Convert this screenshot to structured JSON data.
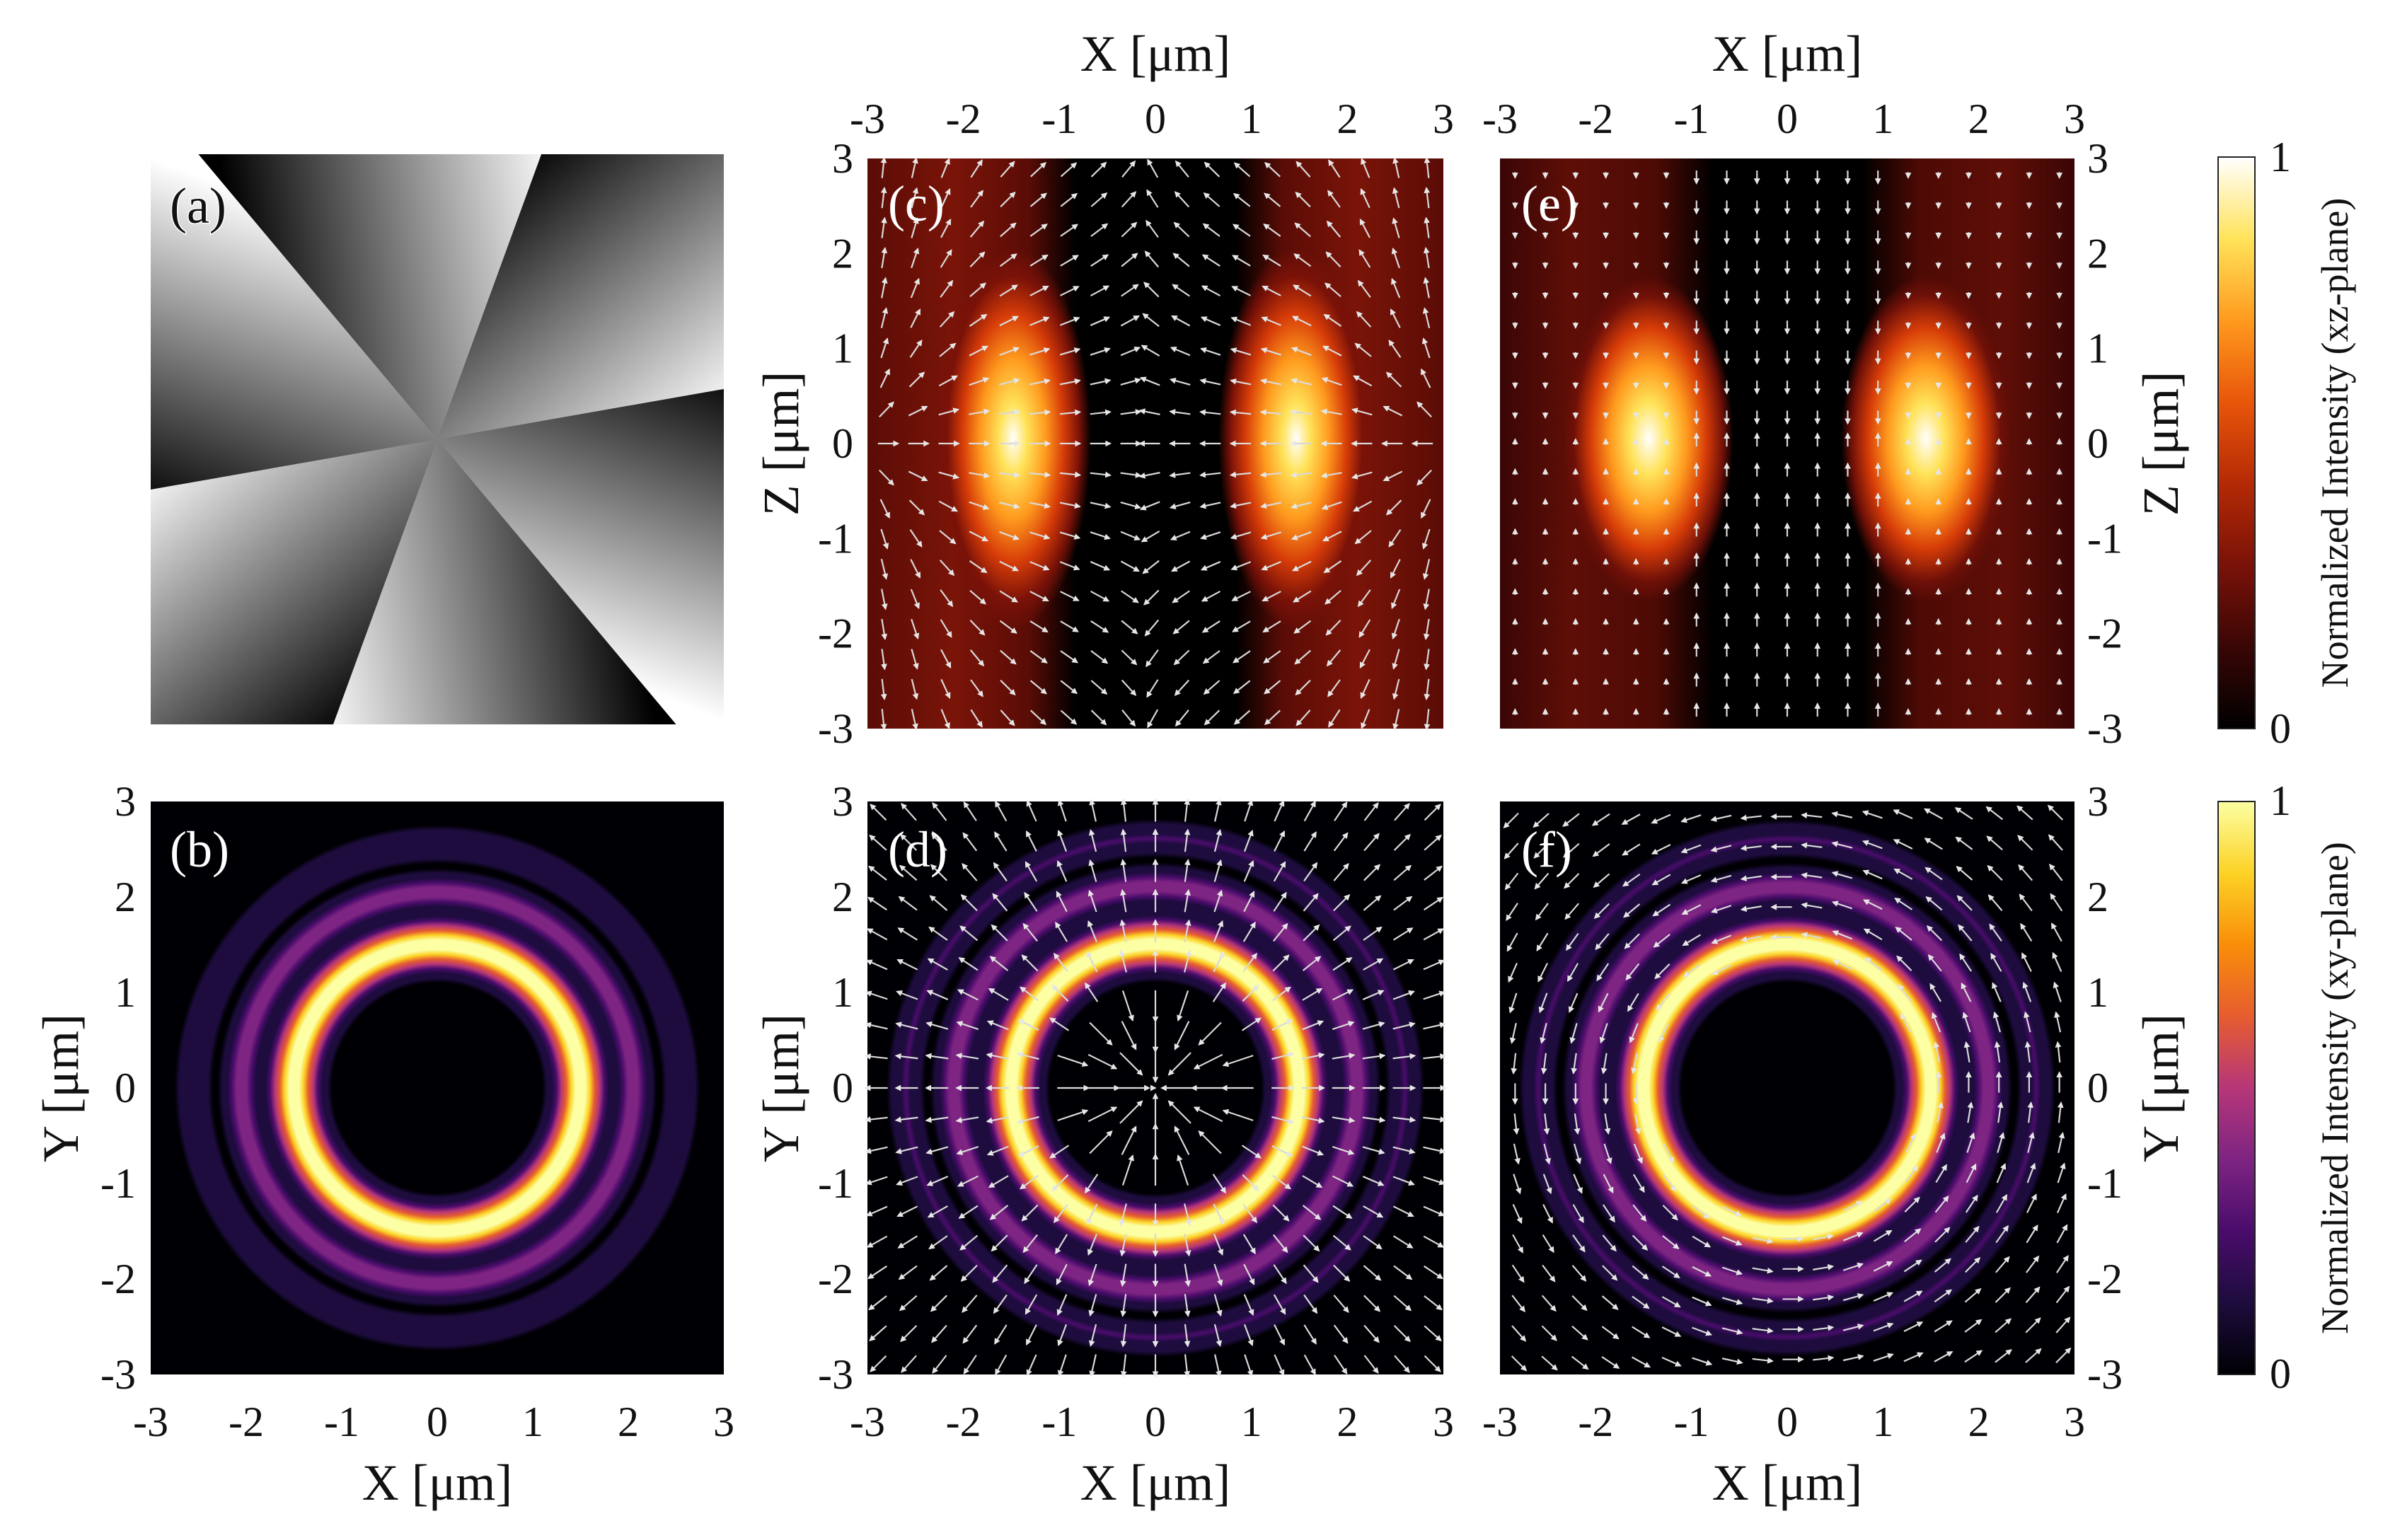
{
  "figure": {
    "axis_label_x": "X [μm]",
    "axis_label_y": "Y [μm]",
    "axis_label_z": "Z [μm]",
    "colorbar_xz_label": "Normalized Intensity (xz-plane)",
    "colorbar_xy_label": "Normalized Intensity (xy-plane)",
    "colorbar_ticks": [
      "0",
      "1"
    ]
  },
  "colors": {
    "xz_colormap": [
      "#000000",
      "#3a0606",
      "#7a1208",
      "#b42a05",
      "#e8560a",
      "#ff9a1e",
      "#ffe35a",
      "#ffffff"
    ],
    "xy_colormap": [
      "#000004",
      "#1d0c3d",
      "#4a0c6b",
      "#7e2482",
      "#b63679",
      "#e65d2f",
      "#f98e09",
      "#fcd225",
      "#fcffa4"
    ]
  },
  "chart_data": [
    {
      "panel": "(a)",
      "type": "heatmap",
      "description_value": "phase",
      "sectors": 6,
      "gradient": [
        "#000000",
        "#ffffff"
      ]
    },
    {
      "panel": "(b)",
      "type": "heatmap",
      "plane": "xy",
      "xlim": [
        -3,
        3
      ],
      "ylim": [
        -3,
        3
      ],
      "xticks": [
        "-3",
        "-2",
        "-1",
        "0",
        "1",
        "2",
        "3"
      ],
      "yticks": [
        "3",
        "2",
        "1",
        "0",
        "-1",
        "-2",
        "-3"
      ],
      "rings": [
        {
          "radius": 1.5,
          "intensity": 1.0
        },
        {
          "radius": 2.05,
          "intensity": 0.35
        },
        {
          "radius": 2.55,
          "intensity": 0.18
        }
      ]
    },
    {
      "panel": "(c)",
      "type": "heatmap",
      "plane": "xz",
      "xlim": [
        -3,
        3
      ],
      "ylim": [
        -3,
        3
      ],
      "xticks": [
        "-3",
        "-2",
        "-1",
        "0",
        "1",
        "2",
        "3"
      ],
      "yticks": [
        "3",
        "2",
        "1",
        "0",
        "-1",
        "-2",
        "-3"
      ],
      "lobes": [
        {
          "x": -1.5,
          "z": 0,
          "intensity": 1.0
        },
        {
          "x": 1.5,
          "z": 0,
          "intensity": 1.0
        }
      ],
      "vector_field": "arrows"
    },
    {
      "panel": "(d)",
      "type": "heatmap",
      "plane": "xy",
      "xlim": [
        -3,
        3
      ],
      "ylim": [
        -3,
        3
      ],
      "xticks": [
        "-3",
        "-2",
        "-1",
        "0",
        "1",
        "2",
        "3"
      ],
      "yticks": [
        "3",
        "2",
        "1",
        "0",
        "-1",
        "-2",
        "-3"
      ],
      "rings": [
        {
          "radius": 1.5,
          "intensity": 1.0
        },
        {
          "radius": 2.1,
          "intensity": 0.38
        },
        {
          "radius": 2.6,
          "intensity": 0.2
        }
      ],
      "vector_field": "arrows"
    },
    {
      "panel": "(e)",
      "type": "heatmap",
      "plane": "xz",
      "xlim": [
        -3,
        3
      ],
      "ylim": [
        -3,
        3
      ],
      "xticks": [
        "-3",
        "-2",
        "-1",
        "0",
        "1",
        "2",
        "3"
      ],
      "yticks": [
        "3",
        "2",
        "1",
        "0",
        "-1",
        "-2",
        "-3"
      ],
      "lobes": [
        {
          "x": -1.45,
          "z": 0,
          "intensity": 1.0
        },
        {
          "x": 1.45,
          "z": 0,
          "intensity": 1.0
        }
      ],
      "vector_field": "arrows"
    },
    {
      "panel": "(f)",
      "type": "heatmap",
      "plane": "xy",
      "xlim": [
        -3,
        3
      ],
      "ylim": [
        -3,
        3
      ],
      "xticks": [
        "-3",
        "-2",
        "-1",
        "0",
        "1",
        "2",
        "3"
      ],
      "yticks": [
        "3",
        "2",
        "1",
        "0",
        "-1",
        "-2",
        "-3"
      ],
      "rings": [
        {
          "radius": 1.5,
          "intensity": 1.0
        },
        {
          "radius": 2.1,
          "intensity": 0.38
        },
        {
          "radius": 2.6,
          "intensity": 0.2
        }
      ],
      "vector_field": "arrows"
    }
  ]
}
